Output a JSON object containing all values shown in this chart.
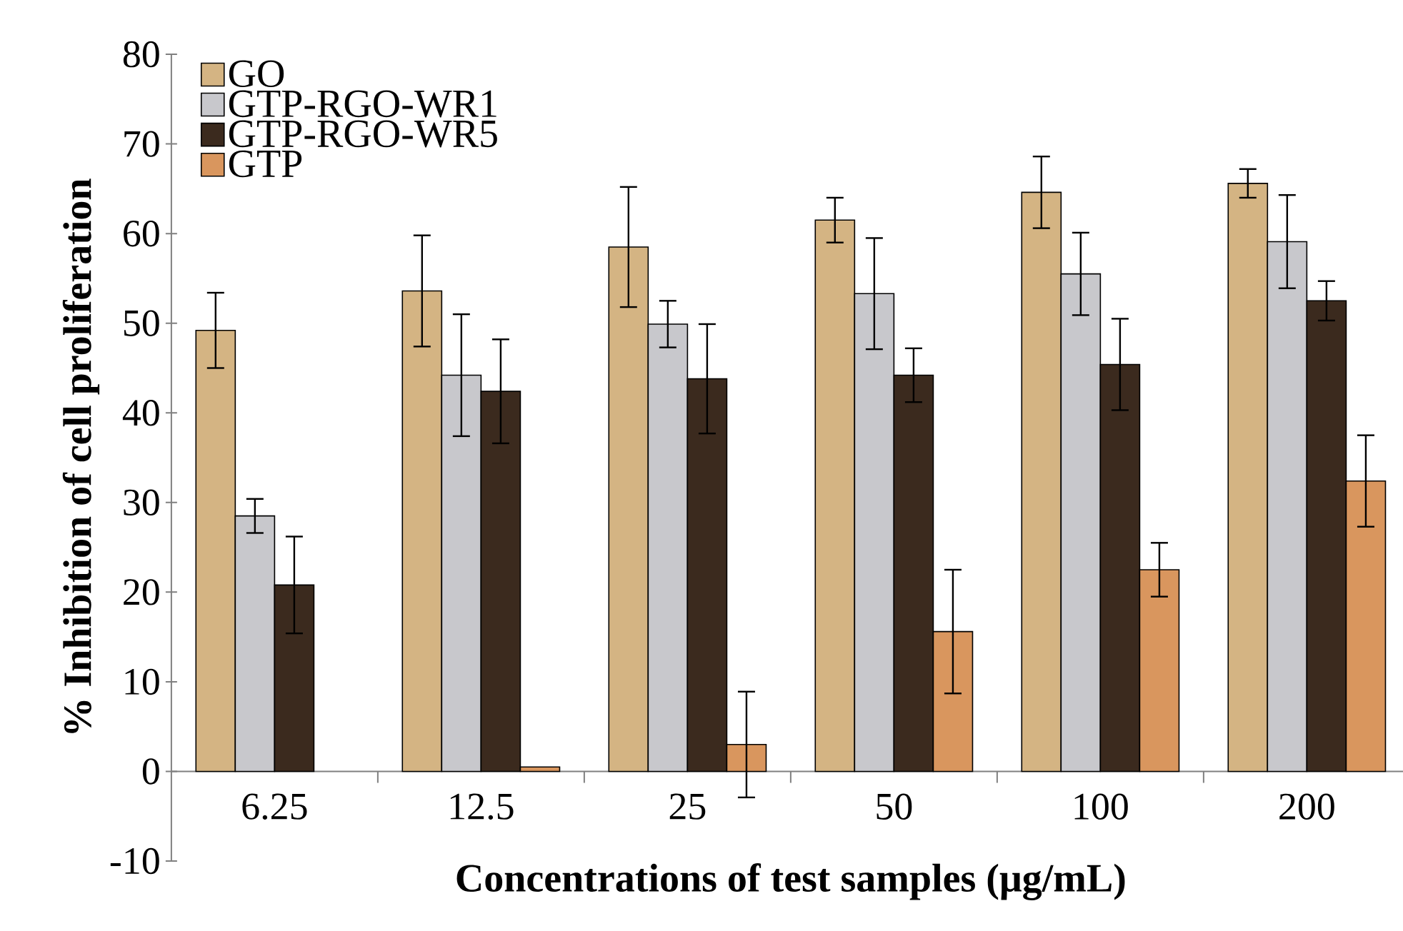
{
  "chart_data": {
    "type": "bar",
    "xlabel": "Concentrations of test samples (μg/mL)",
    "ylabel": "% Inhibition of cell proliferation",
    "categories": [
      "6.25",
      "12.5",
      "25",
      "50",
      "100",
      "200"
    ],
    "series": [
      {
        "name": "GO",
        "color": "#d4b483",
        "values": [
          49.2,
          53.6,
          58.5,
          61.5,
          64.6,
          65.6
        ],
        "errors": [
          4.2,
          6.2,
          6.7,
          2.5,
          4.0,
          1.6
        ]
      },
      {
        "name": "GTP-RGO-WR1",
        "color": "#c8c8cc",
        "values": [
          28.5,
          44.2,
          49.9,
          53.3,
          55.5,
          59.1
        ],
        "errors": [
          1.9,
          6.8,
          2.6,
          6.2,
          4.6,
          5.2
        ]
      },
      {
        "name": "GTP-RGO-WR5",
        "color": "#3b2a1e",
        "values": [
          20.8,
          42.4,
          43.8,
          44.2,
          45.4,
          52.5
        ],
        "errors": [
          5.4,
          5.8,
          6.1,
          3.0,
          5.1,
          2.2
        ]
      },
      {
        "name": "GTP",
        "color": "#d9965e",
        "values": [
          null,
          0.5,
          3.0,
          15.6,
          22.5,
          32.4
        ],
        "errors": [
          null,
          null,
          5.9,
          6.9,
          3.0,
          5.1
        ]
      }
    ],
    "ylim": [
      -10,
      80
    ],
    "yticks": [
      -10,
      0,
      10,
      20,
      30,
      40,
      50,
      60,
      70,
      80
    ],
    "legend": "top left"
  }
}
